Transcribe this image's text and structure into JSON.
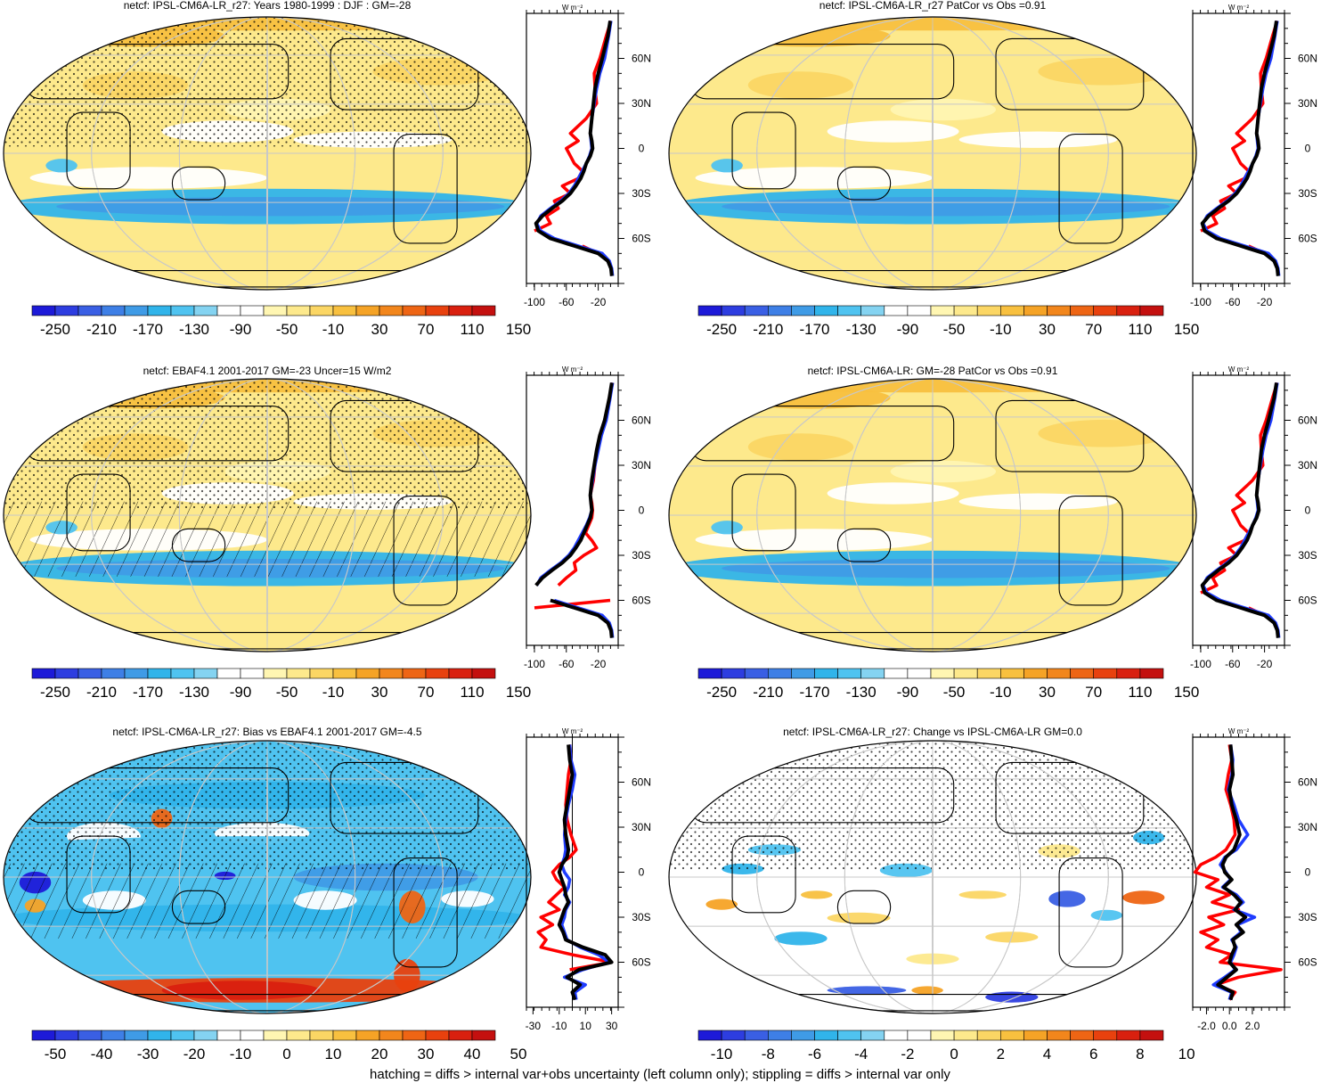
{
  "footer": "hatching = diffs > internal var+obs uncertainty (left column only); stippling = diffs > internal var only",
  "colors": {
    "diverging": [
      "#1d1ad8",
      "#2d3de0",
      "#3a5fe4",
      "#3e7fe6",
      "#3f9be6",
      "#30b4ea",
      "#4fc3f0",
      "#84d3f1",
      "#ffffff",
      "#ffffff",
      "#fff6b2",
      "#fde98c",
      "#fbd664",
      "#f8c03f",
      "#f5a326",
      "#f2861c",
      "#ee6514",
      "#e8410e",
      "#d9200f",
      "#c4100f"
    ],
    "model": "#000000",
    "control": "#1f3cff",
    "obs": "#ff0000"
  },
  "chart_data": [
    {
      "id": "p1",
      "type": "heatmap",
      "title": "netcf: IPSL-CM6A-LR_r27: Years 1980-1999 : DJF : GM=-28",
      "colorbar_labels": [
        "-250",
        "-210",
        "-170",
        "-130",
        "-90",
        "-50",
        "-10",
        "30",
        "70",
        "110",
        "150"
      ],
      "zonal_mean": {
        "unit": "W m⁻²",
        "x_ticks": [
          "-100",
          "-60",
          "-20"
        ],
        "xlim": [
          -110,
          5
        ],
        "y_ticks": [
          "60N",
          "30N",
          "0",
          "30S",
          "60S"
        ],
        "ylim": [
          -90,
          90
        ],
        "lat": [
          85,
          75,
          60,
          50,
          40,
          30,
          20,
          10,
          5,
          0,
          -5,
          -10,
          -15,
          -20,
          -25,
          -30,
          -35,
          -40,
          -45,
          -50,
          -55,
          -60,
          -65,
          -70,
          -75,
          -80,
          -85
        ],
        "series": [
          {
            "role": "model",
            "values": [
              -5,
              -8,
              -15,
              -20,
              -24,
              -26,
              -28,
              -30,
              -28,
              -27,
              -30,
              -35,
              -38,
              -42,
              -48,
              -55,
              -65,
              -78,
              -90,
              -98,
              -95,
              -80,
              -50,
              -20,
              -8,
              -4,
              -3
            ]
          },
          {
            "role": "control",
            "values": [
              -4,
              -7,
              -12,
              -18,
              -22,
              -25,
              -28,
              -30,
              -29,
              -28,
              -31,
              -35,
              -40,
              -45,
              -50,
              -57,
              -67,
              -80,
              -92,
              -97,
              -92,
              -75,
              -45,
              -15,
              -6,
              -3,
              -2
            ]
          },
          {
            "role": "obs",
            "values": [
              -4,
              -10,
              -18,
              -25,
              -24,
              -22,
              -35,
              -55,
              -45,
              -60,
              -55,
              -50,
              -40,
              -45,
              -65,
              -55,
              -75,
              -70,
              -85,
              -80,
              -100,
              null,
              -40,
              -20,
              null,
              null,
              null
            ]
          }
        ]
      }
    },
    {
      "id": "p2",
      "type": "heatmap",
      "title": "netcf: IPSL-CM6A-LR_r27 PatCor vs Obs =0.91",
      "colorbar_labels": [
        "-250",
        "-210",
        "-170",
        "-130",
        "-90",
        "-50",
        "-10",
        "30",
        "70",
        "110",
        "150"
      ],
      "zonal_mean": {
        "unit": "W m⁻²",
        "x_ticks": [
          "-100",
          "-60",
          "-20"
        ],
        "xlim": [
          -110,
          5
        ],
        "y_ticks": [
          "60N",
          "30N",
          "0",
          "30S",
          "60S"
        ],
        "ylim": [
          -90,
          90
        ],
        "lat": [
          85,
          75,
          60,
          50,
          40,
          30,
          20,
          10,
          5,
          0,
          -5,
          -10,
          -15,
          -20,
          -25,
          -30,
          -35,
          -40,
          -45,
          -50,
          -55,
          -60,
          -65,
          -70,
          -75,
          -80,
          -85
        ],
        "series": [
          {
            "role": "model",
            "values": [
              -5,
              -8,
              -15,
              -20,
              -24,
              -26,
              -28,
              -30,
              -28,
              -27,
              -30,
              -35,
              -38,
              -42,
              -48,
              -55,
              -65,
              -78,
              -90,
              -98,
              -95,
              -80,
              -50,
              -20,
              -8,
              -4,
              -3
            ]
          },
          {
            "role": "control",
            "values": [
              -4,
              -7,
              -12,
              -18,
              -22,
              -25,
              -28,
              -30,
              -29,
              -28,
              -31,
              -35,
              -40,
              -45,
              -50,
              -57,
              -67,
              -80,
              -92,
              -97,
              -92,
              -75,
              -45,
              -15,
              -6,
              -3,
              -2
            ]
          },
          {
            "role": "obs",
            "values": [
              -4,
              -10,
              -18,
              -25,
              -24,
              -22,
              -35,
              -55,
              -45,
              -60,
              -55,
              -50,
              -40,
              -45,
              -65,
              -55,
              -75,
              -70,
              -85,
              -80,
              -100,
              null,
              -40,
              -20,
              null,
              null,
              null
            ]
          }
        ]
      }
    },
    {
      "id": "p3",
      "type": "heatmap",
      "title": "netcf: EBAF4.1 2001-2017 GM=-23 Uncer=15 W/m2",
      "colorbar_labels": [
        "-250",
        "-210",
        "-170",
        "-130",
        "-90",
        "-50",
        "-10",
        "30",
        "70",
        "110",
        "150"
      ],
      "zonal_mean": {
        "unit": "W m⁻²",
        "x_ticks": [
          "-100",
          "-60",
          "-20"
        ],
        "xlim": [
          -110,
          5
        ],
        "y_ticks": [
          "60N",
          "30N",
          "0",
          "30S",
          "60S"
        ],
        "ylim": [
          -90,
          90
        ],
        "lat": [
          85,
          75,
          60,
          50,
          40,
          30,
          20,
          10,
          5,
          0,
          -5,
          -10,
          -15,
          -20,
          -25,
          -30,
          -35,
          -40,
          -45,
          -50,
          -55,
          -60,
          -65,
          -70,
          -75,
          -80,
          -85
        ],
        "series": [
          {
            "role": "model",
            "values": [
              -3,
              -6,
              -12,
              -18,
              -22,
              -25,
              -28,
              -30,
              -29,
              -28,
              -30,
              -34,
              -38,
              -42,
              -48,
              -55,
              -65,
              -78,
              -90,
              -98,
              null,
              -80,
              -50,
              -20,
              -8,
              -4,
              -3
            ]
          },
          {
            "role": "control",
            "values": [
              -2,
              -5,
              -10,
              -16,
              -20,
              -24,
              -27,
              -30,
              -29,
              -28,
              -31,
              -35,
              -40,
              -45,
              -50,
              -57,
              -67,
              -80,
              -92,
              -97,
              null,
              -75,
              -45,
              -15,
              -6,
              -3,
              -2
            ]
          },
          {
            "role": "obs",
            "values": [
              -2,
              -6,
              -12,
              -18,
              -22,
              -24,
              -26,
              -30,
              -28,
              -27,
              -28,
              -32,
              -36,
              -28,
              -22,
              -38,
              -50,
              -48,
              -60,
              -70,
              null,
              -5,
              -100,
              null,
              null,
              null,
              null
            ]
          }
        ]
      }
    },
    {
      "id": "p4",
      "type": "heatmap",
      "title": "netcf: IPSL-CM6A-LR: GM=-28 PatCor vs Obs =0.91",
      "colorbar_labels": [
        "-250",
        "-210",
        "-170",
        "-130",
        "-90",
        "-50",
        "-10",
        "30",
        "70",
        "110",
        "150"
      ],
      "zonal_mean": {
        "unit": "W m⁻²",
        "x_ticks": [
          "-100",
          "-60",
          "-20"
        ],
        "xlim": [
          -110,
          5
        ],
        "y_ticks": [
          "60N",
          "30N",
          "0",
          "30S",
          "60S"
        ],
        "ylim": [
          -90,
          90
        ],
        "lat": [
          85,
          75,
          60,
          50,
          40,
          30,
          20,
          10,
          5,
          0,
          -5,
          -10,
          -15,
          -20,
          -25,
          -30,
          -35,
          -40,
          -45,
          -50,
          -55,
          -60,
          -65,
          -70,
          -75,
          -80,
          -85
        ],
        "series": [
          {
            "role": "model",
            "values": [
              -5,
              -8,
              -15,
              -20,
              -24,
              -26,
              -28,
              -30,
              -28,
              -27,
              -30,
              -35,
              -38,
              -42,
              -48,
              -55,
              -65,
              -78,
              -90,
              -98,
              -95,
              -80,
              -50,
              -20,
              -8,
              -4,
              -3
            ]
          },
          {
            "role": "control",
            "values": [
              -4,
              -7,
              -12,
              -18,
              -22,
              -25,
              -28,
              -30,
              -29,
              -28,
              -31,
              -35,
              -40,
              -45,
              -50,
              -57,
              -67,
              -80,
              -92,
              -97,
              -92,
              -75,
              -45,
              -15,
              -6,
              -3,
              -2
            ]
          },
          {
            "role": "obs",
            "values": [
              -4,
              -10,
              -18,
              -25,
              -24,
              -22,
              -35,
              -55,
              -45,
              -60,
              -55,
              -50,
              -40,
              -45,
              -65,
              -55,
              -75,
              -70,
              -85,
              -80,
              -100,
              null,
              -40,
              -20,
              null,
              null,
              null
            ]
          }
        ]
      }
    },
    {
      "id": "p5",
      "type": "heatmap",
      "title": "netcf: IPSL-CM6A-LR_r27: Bias vs EBAF4.1 2001-2017 GM=-4.5",
      "colorbar_labels": [
        "-50",
        "-40",
        "-30",
        "-20",
        "-10",
        "0",
        "10",
        "20",
        "30",
        "40",
        "50"
      ],
      "zonal_mean": {
        "unit": "W m⁻²",
        "x_ticks": [
          "-30",
          "-10",
          "10",
          "30"
        ],
        "xlim": [
          -35,
          35
        ],
        "y_ticks": [
          "60N",
          "30N",
          "0",
          "30S",
          "60S"
        ],
        "ylim": [
          -90,
          90
        ],
        "lat": [
          85,
          75,
          65,
          55,
          45,
          35,
          25,
          15,
          10,
          5,
          0,
          -5,
          -10,
          -15,
          -20,
          -25,
          -30,
          -35,
          -40,
          -45,
          -50,
          -55,
          -60,
          -65,
          -70,
          -75,
          -80,
          -85
        ],
        "series": [
          {
            "role": "model",
            "values": [
              -3,
              -2,
              0,
              -2,
              -4,
              -6,
              -5,
              -3,
              -4,
              -8,
              -10,
              -8,
              -6,
              -5,
              -3,
              -6,
              -8,
              -10,
              -7,
              -5,
              8,
              25,
              30,
              5,
              -4,
              6,
              0,
              2
            ]
          },
          {
            "role": "control",
            "values": [
              -2,
              -1,
              2,
              0,
              -3,
              -5,
              -6,
              -5,
              -6,
              -8,
              -6,
              -2,
              -3,
              -6,
              -2,
              -5,
              -6,
              -8,
              -6,
              -4,
              6,
              20,
              28,
              8,
              -6,
              10,
              2,
              3
            ]
          },
          {
            "role": "obs",
            "values": [
              -2,
              -1,
              -3,
              -4,
              -5,
              -4,
              -1,
              3,
              -2,
              -10,
              -15,
              -12,
              -6,
              -12,
              -18,
              -10,
              -24,
              -15,
              -26,
              -20,
              -24,
              0,
              30,
              -2,
              null,
              null,
              null,
              null
            ]
          }
        ]
      }
    },
    {
      "id": "p6",
      "type": "heatmap",
      "title": "netcf: IPSL-CM6A-LR_r27: Change vs IPSL-CM6A-LR GM=0.0",
      "colorbar_labels": [
        "-10",
        "-8",
        "-6",
        "-4",
        "-2",
        "0",
        "2",
        "4",
        "6",
        "8",
        "10"
      ],
      "zonal_mean": {
        "unit": "W m⁻²",
        "x_ticks": [
          "-2.0",
          "0.0",
          "2.0"
        ],
        "xlim": [
          -3.2,
          4.8
        ],
        "y_ticks": [
          "60N",
          "30N",
          "0",
          "30S",
          "60S"
        ],
        "ylim": [
          -90,
          90
        ],
        "lat": [
          85,
          75,
          65,
          55,
          45,
          35,
          25,
          15,
          10,
          5,
          0,
          -5,
          -10,
          -15,
          -20,
          -25,
          -30,
          -35,
          -40,
          -45,
          -50,
          -55,
          -60,
          -65,
          -70,
          -75,
          -80,
          -85
        ],
        "series": [
          {
            "role": "model",
            "values": [
              0.1,
              0.2,
              0.3,
              0.0,
              0.2,
              0.6,
              0.9,
              0.4,
              -0.3,
              -0.6,
              -0.4,
              0.2,
              -0.5,
              0.4,
              1.0,
              0.5,
              1.4,
              0.6,
              1.2,
              0.3,
              0.5,
              0.2,
              0.0,
              0.6,
              -0.2,
              -1.0,
              0.3,
              0.1
            ]
          },
          {
            "role": "control",
            "values": [
              0.1,
              0.3,
              0.2,
              -0.1,
              0.4,
              0.8,
              1.6,
              0.6,
              -0.4,
              -0.8,
              -0.3,
              0.1,
              -0.6,
              0.6,
              1.2,
              0.4,
              2.2,
              0.7,
              1.0,
              0.2,
              0.6,
              0.4,
              0.1,
              0.5,
              -0.4,
              -1.4,
              0.2,
              0.0
            ]
          },
          {
            "role": "obs",
            "values": [
              0.0,
              0.2,
              -0.1,
              -0.3,
              0.1,
              0.4,
              0.5,
              -0.3,
              -1.2,
              -2.5,
              -3.0,
              -1.0,
              -2.0,
              0.0,
              -1.5,
              0.8,
              -1.8,
              -0.5,
              -2.5,
              -1.0,
              -2.0,
              0.2,
              -0.8,
              4.5,
              0.8,
              -1.2,
              0.5,
              0.0
            ]
          }
        ]
      }
    }
  ]
}
